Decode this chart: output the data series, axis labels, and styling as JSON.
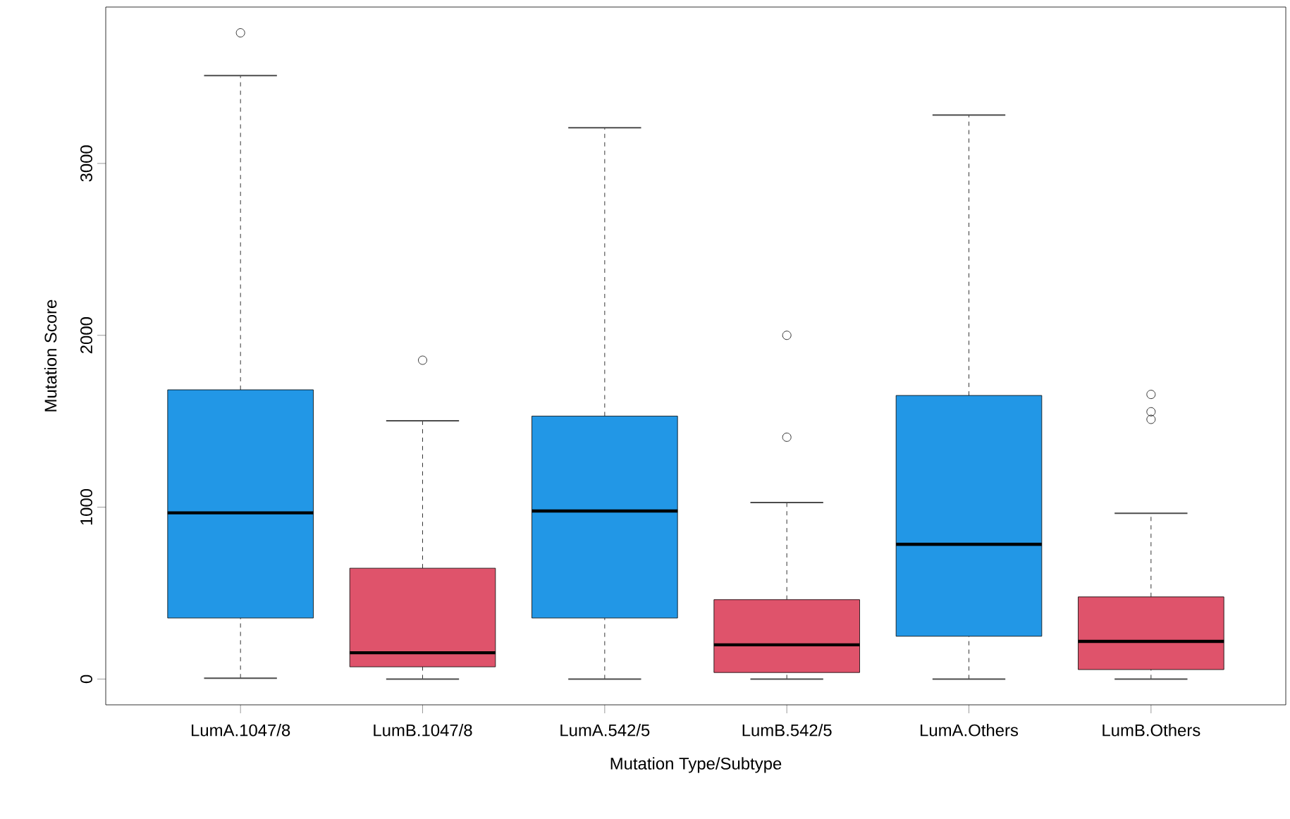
{
  "chart_data": {
    "type": "box",
    "xlabel": "Mutation Type/Subtype",
    "ylabel": "Mutation Score",
    "categories": [
      "LumA.1047/8",
      "LumB.1047/8",
      "LumA.542/5",
      "LumB.542/5",
      "LumA.Others",
      "LumB.Others"
    ],
    "colors": [
      "#2297e6",
      "#df536b",
      "#2297e6",
      "#df536b",
      "#2297e6",
      "#df536b"
    ],
    "boxes": [
      {
        "low": 5,
        "q1": 355,
        "median": 967,
        "q3": 1683,
        "high": 3511,
        "outliers": [
          3760
        ]
      },
      {
        "low": 0,
        "q1": 71,
        "median": 153,
        "q3": 645,
        "high": 1503,
        "outliers": [
          1855
        ]
      },
      {
        "low": 0,
        "q1": 355,
        "median": 978,
        "q3": 1530,
        "high": 3208
      },
      {
        "low": 0,
        "q1": 38,
        "median": 199,
        "q3": 462,
        "high": 1027,
        "outliers": [
          1407,
          2000
        ]
      },
      {
        "low": 0,
        "q1": 249,
        "median": 784,
        "q3": 1650,
        "high": 3281
      },
      {
        "low": 0,
        "q1": 55,
        "median": 219,
        "q3": 478,
        "high": 964,
        "outliers": [
          1511,
          1555,
          1656
        ]
      }
    ],
    "ylim": [
      -150,
      3910
    ],
    "yticks": [
      0,
      1000,
      2000,
      3000
    ],
    "marker": "circle"
  }
}
